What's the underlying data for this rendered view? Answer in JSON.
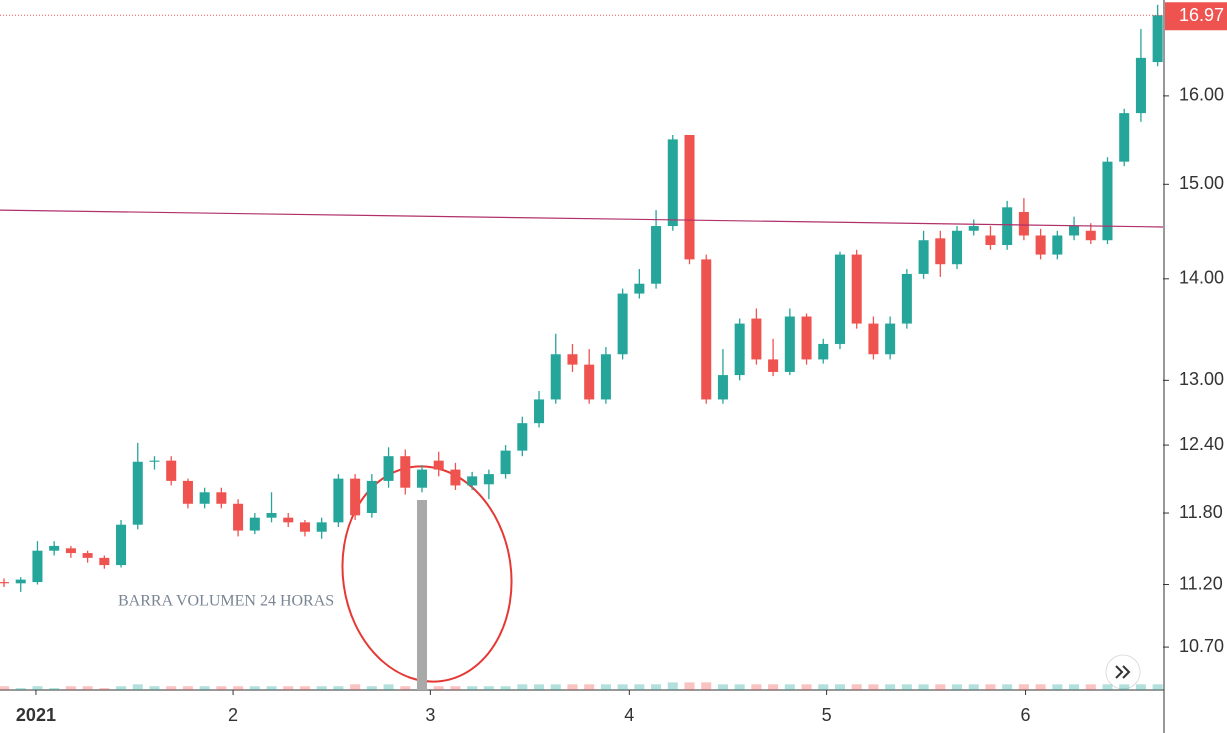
{
  "chart_data": {
    "type": "candlestick",
    "log_scale": true,
    "up_color": "#26a69a",
    "down_color": "#ef5350",
    "volume_color": "#a9a9a9",
    "ylim": [
      10.37,
      17.16
    ],
    "yticks": [
      {
        "value": 10.7,
        "label": "10.70"
      },
      {
        "value": 11.2,
        "label": "11.20"
      },
      {
        "value": 11.8,
        "label": "11.80"
      },
      {
        "value": 12.4,
        "label": "12.40"
      },
      {
        "value": 13,
        "label": "13.00"
      },
      {
        "value": 14,
        "label": "14.00"
      },
      {
        "value": 15,
        "label": "15.00"
      },
      {
        "value": 16,
        "label": "16.00"
      }
    ],
    "xlim": [
      -0.24,
      69.32
    ],
    "xticks": [
      {
        "value": 1.91,
        "label": "2021"
      },
      {
        "value": 13.7,
        "label": "2"
      },
      {
        "value": 25.5,
        "label": "3"
      },
      {
        "value": 37.4,
        "label": "4"
      },
      {
        "value": 49.2,
        "label": "5"
      },
      {
        "value": 61.1,
        "label": "6"
      }
    ],
    "open": [
      11.22,
      11.21,
      11.22,
      11.48,
      11.5,
      11.46,
      11.42,
      11.36,
      11.7,
      12.25,
      12.26,
      12.08,
      11.88,
      11.98,
      11.88,
      11.65,
      11.76,
      11.76,
      11.72,
      11.64,
      11.72,
      12.1,
      11.8,
      12.08,
      12.3,
      12.02,
      12.26,
      12.18,
      12.04,
      12.05,
      12.14,
      12.35,
      12.6,
      12.82,
      13.25,
      13.15,
      12.82,
      13.25,
      13.85,
      13.95,
      14.55,
      15.55,
      14.2,
      12.82,
      13.05,
      13.6,
      13.2,
      13.08,
      13.62,
      13.2,
      13.35,
      14.25,
      13.55,
      13.25,
      13.55,
      14.05,
      14.42,
      14.15,
      14.5,
      14.45,
      14.35,
      14.7,
      14.45,
      14.25,
      14.45,
      14.5,
      14.4,
      15.25,
      15.8,
      16.4
    ],
    "high": [
      11.25,
      11.26,
      11.56,
      11.56,
      11.52,
      11.48,
      11.44,
      11.74,
      12.42,
      12.3,
      12.3,
      12.1,
      12.02,
      12.02,
      11.92,
      11.8,
      11.98,
      11.8,
      11.74,
      11.76,
      12.14,
      12.14,
      12.14,
      12.38,
      12.36,
      12.22,
      12.34,
      12.24,
      12.16,
      12.18,
      12.4,
      12.66,
      12.9,
      13.45,
      13.35,
      13.3,
      13.32,
      13.9,
      14.1,
      14.72,
      15.55,
      15.55,
      14.25,
      13.3,
      13.6,
      13.7,
      13.4,
      13.7,
      13.65,
      13.4,
      14.28,
      14.3,
      13.62,
      13.62,
      14.1,
      14.5,
      14.5,
      14.55,
      14.62,
      14.55,
      14.82,
      14.85,
      14.52,
      14.5,
      14.65,
      14.58,
      15.3,
      15.85,
      16.8,
      17.1
    ],
    "low": [
      11.18,
      11.14,
      11.2,
      11.44,
      11.42,
      11.38,
      11.33,
      11.34,
      11.66,
      12.18,
      12.04,
      11.84,
      11.84,
      11.84,
      11.6,
      11.62,
      11.72,
      11.68,
      11.6,
      11.58,
      11.68,
      11.74,
      11.76,
      12.02,
      11.96,
      11.98,
      12.12,
      12.0,
      12.0,
      11.92,
      12.1,
      12.3,
      12.56,
      12.78,
      13.08,
      12.78,
      12.78,
      13.2,
      13.8,
      13.9,
      14.5,
      14.15,
      12.78,
      12.78,
      13.0,
      13.15,
      13.04,
      13.05,
      13.15,
      13.16,
      13.3,
      13.5,
      13.2,
      13.2,
      13.5,
      14.0,
      14.02,
      14.1,
      14.45,
      14.3,
      14.3,
      14.4,
      14.2,
      14.2,
      14.4,
      14.36,
      14.36,
      15.2,
      15.7,
      16.35
    ],
    "close": [
      11.21,
      11.24,
      11.48,
      11.52,
      11.46,
      11.42,
      11.36,
      11.7,
      12.25,
      12.26,
      12.08,
      11.88,
      11.98,
      11.88,
      11.65,
      11.76,
      11.8,
      11.72,
      11.64,
      11.72,
      12.1,
      11.78,
      12.08,
      12.3,
      12.02,
      12.18,
      12.18,
      12.04,
      12.12,
      12.14,
      12.35,
      12.6,
      12.82,
      13.25,
      13.15,
      12.82,
      13.25,
      13.85,
      13.95,
      14.55,
      15.5,
      14.2,
      12.82,
      13.05,
      13.55,
      13.2,
      13.08,
      13.62,
      13.2,
      13.35,
      14.25,
      13.55,
      13.25,
      13.55,
      14.05,
      14.4,
      14.15,
      14.5,
      14.55,
      14.35,
      14.75,
      14.45,
      14.25,
      14.45,
      14.55,
      14.4,
      15.25,
      15.8,
      16.45,
      16.97
    ],
    "volume": [
      2,
      1,
      2,
      1,
      2,
      2,
      1,
      2,
      3,
      2,
      2,
      2,
      2,
      2,
      2,
      2,
      2,
      2,
      2,
      2,
      2,
      3,
      2,
      3,
      2,
      100,
      2,
      2,
      2,
      2,
      2,
      3,
      3,
      3,
      3,
      3,
      3,
      3,
      3,
      3,
      4,
      4,
      4,
      3,
      3,
      3,
      3,
      3,
      3,
      3,
      3,
      3,
      3,
      3,
      3,
      3,
      3,
      3,
      3,
      3,
      3,
      3,
      3,
      3,
      3,
      3,
      3,
      3,
      3,
      3
    ],
    "trendline": {
      "values": [
        14.72,
        14.54
      ],
      "color": "#b0306a"
    },
    "last_price": 16.97,
    "annotation": "BARRA VOLUMEN 24 HORAS"
  }
}
